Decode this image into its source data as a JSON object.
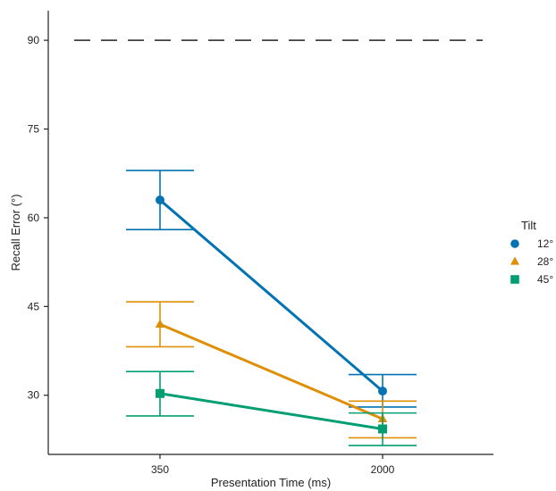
{
  "chart_data": {
    "type": "line",
    "xlabel": "Presentation Time (ms)",
    "ylabel": "Recall Error (°)",
    "categories": [
      "350",
      "2000"
    ],
    "yticks": [
      "30",
      "45",
      "60",
      "75",
      "90"
    ],
    "ylim": [
      20,
      95
    ],
    "reference_line": {
      "value": 90,
      "style": "dashed",
      "color": "#222222"
    },
    "grid": false,
    "legend": {
      "title": "Tilt",
      "placement": "right"
    },
    "series": [
      {
        "name": "12°",
        "marker": "circle",
        "color": "#0173b2",
        "values": [
          63.0,
          30.7
        ],
        "err_low": [
          58.0,
          28.0
        ],
        "err_high": [
          68.0,
          33.5
        ]
      },
      {
        "name": "28°",
        "marker": "triangle",
        "color": "#de8f05",
        "values": [
          42.0,
          26.0
        ],
        "err_low": [
          38.2,
          22.8
        ],
        "err_high": [
          45.8,
          29.0
        ]
      },
      {
        "name": "45°",
        "marker": "square",
        "color": "#029e73",
        "values": [
          30.3,
          24.3
        ],
        "err_low": [
          26.5,
          21.5
        ],
        "err_high": [
          34.0,
          27.0
        ]
      }
    ]
  }
}
